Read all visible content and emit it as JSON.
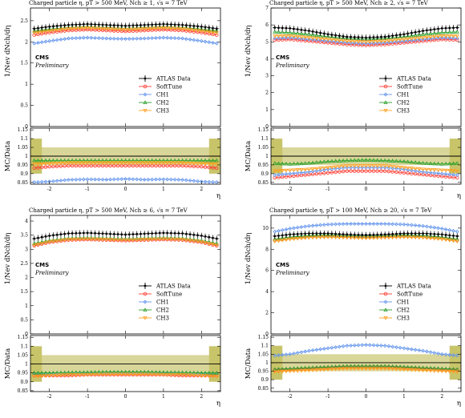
{
  "colors": {
    "atlas_data": "#000000",
    "softtune": "#ff3b30",
    "ch1": "#6495ed",
    "ch2": "#2ca02c",
    "ch3": "#ff9f1c",
    "band_outer": "#c8c46a",
    "band_inner": "#d9d699"
  },
  "legend_entries": [
    "ATLAS Data",
    "SoftTune",
    "CH1",
    "CH2",
    "CH3"
  ],
  "labels": {
    "cms": "CMS",
    "preliminary": "Preliminary",
    "ratio_ylabel": "MC/Data",
    "main_ylabel": "1/Nev dNch/dη",
    "xlabel": "η"
  },
  "chart_data": [
    {
      "type": "line",
      "title": "Charged particle η, pT > 500 MeV, Nch ≥ 1, √s = 7 TeV",
      "xlabel": "η",
      "ylabel": "1/Nev dNch/dη",
      "xlim": [
        -2.5,
        2.5
      ],
      "ylim": [
        0,
        2.8
      ],
      "yticks": [
        0,
        0.5,
        1,
        1.5,
        2,
        2.5
      ],
      "xticks": [
        -2,
        -1,
        0,
        1,
        2
      ],
      "legend_position": "right",
      "x": [
        -2.5,
        -2.0,
        -1.5,
        -1.0,
        -0.5,
        0.0,
        0.5,
        1.0,
        1.5,
        2.0,
        2.5
      ],
      "series": [
        {
          "name": "ATLAS Data",
          "values": [
            2.3,
            2.36,
            2.4,
            2.42,
            2.4,
            2.38,
            2.4,
            2.42,
            2.4,
            2.36,
            2.3
          ]
        },
        {
          "name": "SoftTune",
          "values": [
            2.15,
            2.22,
            2.27,
            2.29,
            2.27,
            2.25,
            2.27,
            2.29,
            2.27,
            2.22,
            2.15
          ]
        },
        {
          "name": "CH1",
          "values": [
            1.95,
            2.02,
            2.08,
            2.1,
            2.08,
            2.07,
            2.08,
            2.1,
            2.08,
            2.02,
            1.95
          ]
        },
        {
          "name": "CH2",
          "values": [
            2.25,
            2.3,
            2.34,
            2.36,
            2.34,
            2.32,
            2.34,
            2.36,
            2.34,
            2.3,
            2.25
          ]
        },
        {
          "name": "CH3",
          "values": [
            2.2,
            2.26,
            2.31,
            2.33,
            2.31,
            2.29,
            2.31,
            2.33,
            2.31,
            2.26,
            2.2
          ]
        }
      ],
      "ratio": {
        "ylabel": "MC/Data",
        "ylim": [
          0.84,
          1.16
        ],
        "yticks": [
          0.85,
          0.9,
          0.95,
          1,
          1.05,
          1.1,
          1.15
        ],
        "ytick_labels": [
          "0.85",
          "0.9",
          "0.95",
          "1",
          "1.05",
          "1.1",
          "1.15"
        ],
        "series": [
          {
            "name": "SoftTune",
            "values": [
              0.93,
              0.94,
              0.945,
              0.945,
              0.945,
              0.945,
              0.945,
              0.945,
              0.945,
              0.94,
              0.93
            ]
          },
          {
            "name": "CH1",
            "values": [
              0.85,
              0.855,
              0.865,
              0.868,
              0.866,
              0.87,
              0.866,
              0.868,
              0.865,
              0.855,
              0.85
            ]
          },
          {
            "name": "CH2",
            "values": [
              0.975,
              0.975,
              0.975,
              0.975,
              0.975,
              0.975,
              0.975,
              0.975,
              0.975,
              0.975,
              0.975
            ]
          },
          {
            "name": "CH3",
            "values": [
              0.955,
              0.958,
              0.962,
              0.962,
              0.962,
              0.962,
              0.962,
              0.962,
              0.962,
              0.958,
              0.955
            ]
          }
        ]
      }
    },
    {
      "type": "line",
      "title": "Charged particle η, pT > 500 MeV, Nch ≥ 2, √s = 7 TeV",
      "xlabel": "η",
      "ylabel": "1/Nev dNch/dη",
      "xlim": [
        -2.5,
        2.5
      ],
      "ylim": [
        0,
        7
      ],
      "yticks": [
        0,
        1,
        2,
        3,
        4,
        5,
        6,
        7
      ],
      "xticks": [
        -2,
        -1,
        0,
        1,
        2
      ],
      "legend_position": "right",
      "x": [
        -2.5,
        -2.0,
        -1.5,
        -1.0,
        -0.5,
        0.0,
        0.5,
        1.0,
        1.5,
        2.0,
        2.5
      ],
      "series": [
        {
          "name": "ATLAS Data",
          "values": [
            5.85,
            5.8,
            5.65,
            5.45,
            5.3,
            5.25,
            5.3,
            5.45,
            5.65,
            5.8,
            5.85
          ]
        },
        {
          "name": "SoftTune",
          "values": [
            5.1,
            5.15,
            5.05,
            4.95,
            4.85,
            4.8,
            4.85,
            4.95,
            5.05,
            5.15,
            5.1
          ]
        },
        {
          "name": "CH1",
          "values": [
            5.2,
            5.25,
            5.15,
            5.05,
            4.95,
            4.9,
            4.95,
            5.05,
            5.15,
            5.25,
            5.2
          ]
        },
        {
          "name": "CH2",
          "values": [
            5.6,
            5.55,
            5.45,
            5.3,
            5.2,
            5.15,
            5.2,
            5.3,
            5.45,
            5.55,
            5.6
          ]
        },
        {
          "name": "CH3",
          "values": [
            5.35,
            5.35,
            5.25,
            5.15,
            5.05,
            5.0,
            5.05,
            5.15,
            5.25,
            5.35,
            5.35
          ]
        }
      ],
      "ratio": {
        "ylabel": "MC/Data",
        "ylim": [
          0.84,
          1.16
        ],
        "yticks": [
          0.85,
          0.9,
          0.95,
          1,
          1.05,
          1.1,
          1.15
        ],
        "ytick_labels": [
          "0.85",
          "0.9",
          "0.95",
          "1",
          "1.05",
          "1.1",
          "1.15"
        ],
        "series": [
          {
            "name": "SoftTune",
            "values": [
              0.875,
              0.885,
              0.895,
              0.905,
              0.915,
              0.915,
              0.915,
              0.905,
              0.895,
              0.885,
              0.875
            ]
          },
          {
            "name": "CH1",
            "values": [
              0.89,
              0.9,
              0.91,
              0.925,
              0.935,
              0.935,
              0.935,
              0.925,
              0.91,
              0.9,
              0.89
            ]
          },
          {
            "name": "CH2",
            "values": [
              0.96,
              0.955,
              0.96,
              0.97,
              0.975,
              0.978,
              0.975,
              0.97,
              0.96,
              0.955,
              0.96
            ]
          },
          {
            "name": "CH3",
            "values": [
              0.915,
              0.92,
              0.925,
              0.935,
              0.945,
              0.945,
              0.945,
              0.935,
              0.925,
              0.92,
              0.915
            ]
          }
        ]
      }
    },
    {
      "type": "line",
      "title": "Charged particle η, pT > 500 MeV, Nch ≥ 6, √s = 7 TeV",
      "xlabel": "η",
      "ylabel": "1/Nev dNch/dη",
      "xlim": [
        -2.5,
        2.5
      ],
      "ylim": [
        0,
        4.2
      ],
      "yticks": [
        0,
        0.5,
        1,
        1.5,
        2,
        2.5,
        3,
        3.5,
        4
      ],
      "xticks": [
        -2,
        -1,
        0,
        1,
        2
      ],
      "legend_position": "right",
      "x": [
        -2.5,
        -2.0,
        -1.5,
        -1.0,
        -0.5,
        0.0,
        0.5,
        1.0,
        1.5,
        2.0,
        2.5
      ],
      "series": [
        {
          "name": "ATLAS Data",
          "values": [
            3.35,
            3.48,
            3.56,
            3.58,
            3.55,
            3.52,
            3.55,
            3.58,
            3.56,
            3.48,
            3.35
          ]
        },
        {
          "name": "SoftTune",
          "values": [
            3.1,
            3.25,
            3.33,
            3.35,
            3.33,
            3.31,
            3.33,
            3.35,
            3.33,
            3.25,
            3.1
          ]
        },
        {
          "name": "CH1",
          "values": [
            3.15,
            3.29,
            3.37,
            3.39,
            3.37,
            3.35,
            3.37,
            3.39,
            3.37,
            3.29,
            3.15
          ]
        },
        {
          "name": "CH2",
          "values": [
            3.18,
            3.31,
            3.39,
            3.41,
            3.39,
            3.37,
            3.39,
            3.41,
            3.39,
            3.31,
            3.18
          ]
        },
        {
          "name": "CH3",
          "values": [
            3.12,
            3.27,
            3.35,
            3.37,
            3.35,
            3.33,
            3.35,
            3.37,
            3.35,
            3.27,
            3.12
          ]
        }
      ],
      "ratio": {
        "ylabel": "MC/Data",
        "ylim": [
          0.845,
          1.16
        ],
        "yticks": [
          0.85,
          0.9,
          0.95,
          1,
          1.05,
          1.1,
          1.15
        ],
        "ytick_labels": [
          "0.85",
          "0.9",
          "0.95",
          "1",
          "1.05",
          "1.1",
          "1.15"
        ],
        "series": [
          {
            "name": "SoftTune",
            "values": [
              0.935,
              0.935,
              0.935,
              0.94,
              0.94,
              0.94,
              0.94,
              0.94,
              0.935,
              0.935,
              0.935
            ]
          },
          {
            "name": "CH1",
            "values": [
              0.945,
              0.945,
              0.947,
              0.948,
              0.95,
              0.95,
              0.95,
              0.948,
              0.947,
              0.945,
              0.945
            ]
          },
          {
            "name": "CH2",
            "values": [
              0.95,
              0.95,
              0.952,
              0.953,
              0.955,
              0.955,
              0.955,
              0.953,
              0.952,
              0.95,
              0.95
            ]
          },
          {
            "name": "CH3",
            "values": [
              0.93,
              0.935,
              0.94,
              0.94,
              0.942,
              0.942,
              0.942,
              0.94,
              0.94,
              0.935,
              0.93
            ]
          }
        ]
      }
    },
    {
      "type": "line",
      "title": "Charged particle η, pT > 100 MeV, Nch ≥ 20, √s = 7 TeV",
      "xlabel": "η",
      "ylabel": "1/Nev dNch/dη",
      "xlim": [
        -2.5,
        2.5
      ],
      "ylim": [
        0,
        11.2
      ],
      "yticks": [
        0,
        2,
        4,
        6,
        8,
        10
      ],
      "xticks": [
        -2,
        -1,
        0,
        1,
        2
      ],
      "legend_position": "right",
      "x": [
        -2.5,
        -2.0,
        -1.5,
        -1.0,
        -0.5,
        0.0,
        0.5,
        1.0,
        1.5,
        2.0,
        2.5
      ],
      "series": [
        {
          "name": "ATLAS Data",
          "values": [
            9.2,
            9.4,
            9.5,
            9.5,
            9.4,
            9.35,
            9.4,
            9.5,
            9.5,
            9.4,
            9.2
          ]
        },
        {
          "name": "SoftTune",
          "values": [
            8.8,
            9.05,
            9.2,
            9.25,
            9.2,
            9.15,
            9.2,
            9.25,
            9.2,
            9.05,
            8.8
          ]
        },
        {
          "name": "CH1",
          "values": [
            9.6,
            9.95,
            10.2,
            10.35,
            10.4,
            10.4,
            10.4,
            10.35,
            10.2,
            9.95,
            9.6
          ]
        },
        {
          "name": "CH2",
          "values": [
            8.9,
            9.15,
            9.3,
            9.35,
            9.3,
            9.25,
            9.3,
            9.35,
            9.3,
            9.15,
            8.9
          ]
        },
        {
          "name": "CH3",
          "values": [
            8.7,
            8.95,
            9.1,
            9.15,
            9.1,
            9.05,
            9.1,
            9.15,
            9.1,
            8.95,
            8.7
          ]
        }
      ],
      "ratio": {
        "ylabel": "MC/Data",
        "ylim": [
          0.83,
          1.16
        ],
        "yticks": [
          0.85,
          0.9,
          0.95,
          1,
          1.05,
          1.1,
          1.15
        ],
        "ytick_labels": [
          "0.85",
          "0.9",
          "0.95",
          "1",
          "1.05",
          "1.1",
          "1.15"
        ],
        "series": [
          {
            "name": "SoftTune",
            "values": [
              0.955,
              0.96,
              0.965,
              0.97,
              0.975,
              0.975,
              0.975,
              0.97,
              0.965,
              0.96,
              0.955
            ]
          },
          {
            "name": "CH1",
            "values": [
              1.04,
              1.05,
              1.07,
              1.085,
              1.1,
              1.105,
              1.1,
              1.085,
              1.07,
              1.05,
              1.04
            ]
          },
          {
            "name": "CH2",
            "values": [
              0.96,
              0.965,
              0.97,
              0.975,
              0.98,
              0.98,
              0.98,
              0.975,
              0.97,
              0.965,
              0.96
            ]
          },
          {
            "name": "CH3",
            "values": [
              0.945,
              0.95,
              0.955,
              0.96,
              0.965,
              0.965,
              0.965,
              0.96,
              0.955,
              0.95,
              0.945
            ]
          }
        ]
      }
    }
  ]
}
